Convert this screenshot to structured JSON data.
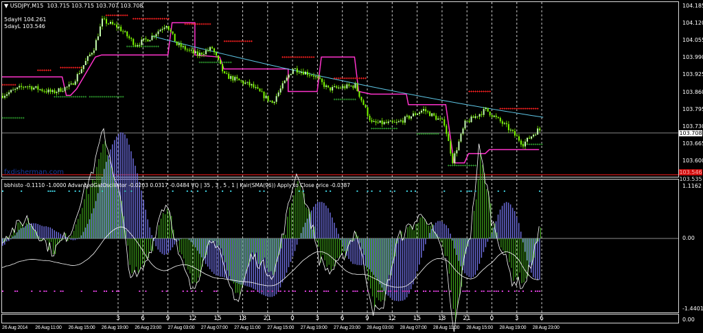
{
  "header": {
    "symbol": "USDJPY,M15",
    "ohlc": "103.715 103.715 103.707 103.708",
    "five_day_high": "5dayH 104.261",
    "five_day_low": "5dayL 103.546"
  },
  "watermark": "fxdisherman.com",
  "indicator_header": "bbhisto -0.1110 -1.0000  AdvancedGatOscillator -0.0203 0.0317 -0.0484  VQ | 35 , 3 , 5 , 1 | Kair(SMA(96)) Apply to Close price -0.0387",
  "price_axis": {
    "ticks": [
      "104.185",
      "104.120",
      "104.055",
      "103.990",
      "103.925",
      "103.860",
      "103.795",
      "103.730",
      "103.665",
      "103.600"
    ],
    "current_price": "103.708",
    "low_marker": "103.546",
    "low_marker_partial": "103.535"
  },
  "indicator_axis": {
    "max": "1.1162",
    "zero": "0.00",
    "min": "-1.4401",
    "corner": "0.00"
  },
  "hour_ticks": [
    "3",
    "6",
    "9",
    "12",
    "15",
    "18",
    "21",
    "0",
    "3",
    "6",
    "9",
    "12",
    "15",
    "18",
    "21",
    "0",
    "3",
    "6"
  ],
  "date_labels": [
    "26 Aug 2014",
    "26 Aug 11:00",
    "26 Aug 15:00",
    "26 Aug 19:00",
    "26 Aug 23:00",
    "27 Aug 03:00",
    "27 Aug 07:00",
    "27 Aug 11:00",
    "27 Aug 15:00",
    "27 Aug 19:00",
    "27 Aug 23:00",
    "28 Aug 03:00",
    "28 Aug 07:00",
    "28 Aug 11:00",
    "28 Aug 15:00",
    "28 Aug 19:00",
    "28 Aug 23:00"
  ],
  "colors": {
    "candle": "#7cfc00",
    "channel": "#ff33cc",
    "trend": "#5fc8e8",
    "resistance": "#ff2020",
    "support": "#2e9e2e",
    "low_line": "#b01515",
    "histo_green": "#3fa41a",
    "histo_blue": "#6a6ad8",
    "osc_line": "#ffffff",
    "dots_magenta": "#e040e0",
    "dots_cyan": "#40d0e0"
  },
  "price_path": [
    [
      0,
      103.843
    ],
    [
      12,
      103.882
    ],
    [
      25,
      103.856
    ],
    [
      34,
      103.882
    ],
    [
      39,
      103.947
    ],
    [
      45,
      104.024
    ],
    [
      49,
      104.128
    ],
    [
      57,
      104.102
    ],
    [
      65,
      104.037
    ],
    [
      72,
      104.062
    ],
    [
      80,
      104.115
    ],
    [
      85,
      104.037
    ],
    [
      95,
      103.998
    ],
    [
      102,
      104.024
    ],
    [
      108,
      103.921
    ],
    [
      121,
      103.882
    ],
    [
      131,
      103.817
    ],
    [
      141,
      103.947
    ],
    [
      151,
      103.921
    ],
    [
      158,
      103.869
    ],
    [
      171,
      103.882
    ],
    [
      179,
      103.74
    ],
    [
      191,
      103.74
    ],
    [
      204,
      103.791
    ],
    [
      214,
      103.74
    ],
    [
      218,
      103.597
    ],
    [
      224,
      103.74
    ],
    [
      234,
      103.791
    ],
    [
      244,
      103.727
    ],
    [
      252,
      103.662
    ],
    [
      259,
      103.714
    ]
  ],
  "channel_path": [
    [
      0,
      103.915
    ],
    [
      29,
      103.915
    ],
    [
      31,
      103.845
    ],
    [
      33,
      103.845
    ],
    [
      36,
      103.87
    ],
    [
      45,
      103.99
    ],
    [
      48,
      103.998
    ],
    [
      80,
      103.998
    ],
    [
      82,
      104.12
    ],
    [
      93,
      104.12
    ],
    [
      93,
      103.998
    ],
    [
      105,
      103.99
    ],
    [
      107,
      103.945
    ],
    [
      138,
      103.945
    ],
    [
      138,
      103.86
    ],
    [
      152,
      103.86
    ],
    [
      154,
      103.99
    ],
    [
      170,
      103.99
    ],
    [
      172,
      103.86
    ],
    [
      178,
      103.85
    ],
    [
      195,
      103.85
    ],
    [
      196,
      103.81
    ],
    [
      214,
      103.81
    ],
    [
      218,
      103.59
    ],
    [
      223,
      103.59
    ],
    [
      225,
      103.625
    ],
    [
      233,
      103.625
    ],
    [
      235,
      103.64
    ],
    [
      259,
      103.64
    ]
  ],
  "resistance_segments": [
    [
      0,
      6,
      103.885
    ],
    [
      17,
      23,
      103.94
    ],
    [
      28,
      38,
      103.95
    ],
    [
      50,
      60,
      104.148
    ],
    [
      63,
      80,
      104.135
    ],
    [
      88,
      100,
      104.115
    ],
    [
      107,
      120,
      104.05
    ],
    [
      135,
      150,
      103.99
    ],
    [
      160,
      175,
      103.91
    ],
    [
      225,
      235,
      103.86
    ],
    [
      240,
      258,
      103.795
    ]
  ],
  "support_segments": [
    [
      0,
      10,
      103.76
    ],
    [
      25,
      40,
      103.84
    ],
    [
      42,
      58,
      103.84
    ],
    [
      60,
      75,
      104.03
    ],
    [
      95,
      110,
      103.97
    ],
    [
      160,
      170,
      103.83
    ],
    [
      178,
      190,
      103.72
    ],
    [
      200,
      210,
      103.7
    ],
    [
      215,
      228,
      103.58
    ],
    [
      250,
      260,
      103.66
    ]
  ]
}
